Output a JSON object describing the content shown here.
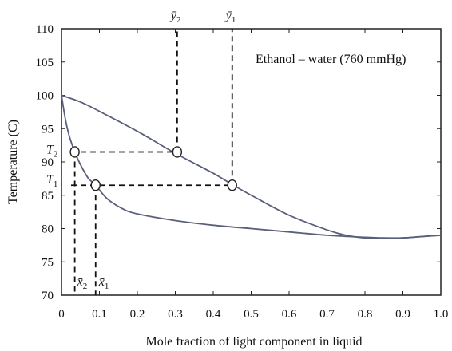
{
  "chart_data": {
    "type": "line",
    "title": "",
    "xlabel": "Mole fraction of light component in liquid",
    "ylabel": "Temperature (C)",
    "xlim": [
      0,
      1.0
    ],
    "ylim": [
      70,
      110
    ],
    "x_ticks": [
      "0",
      "0.1",
      "0.2",
      "0.3",
      "0.4",
      "0.5",
      "0.6",
      "0.7",
      "0.8",
      "0.9",
      "1.0"
    ],
    "y_ticks": [
      "70",
      "75",
      "80",
      "85",
      "90",
      "95",
      "100",
      "105",
      "110"
    ],
    "annotation": "Ethanol – water (760 mmHg)",
    "grid": false,
    "curve_color": "#5a5f7a",
    "series": [
      {
        "role": "bubble-point",
        "x": [
          0.0,
          0.01,
          0.02,
          0.035,
          0.05,
          0.07,
          0.09,
          0.12,
          0.16,
          0.2,
          0.3,
          0.4,
          0.5,
          0.6,
          0.7,
          0.8,
          0.85,
          0.9,
          0.95,
          1.0
        ],
        "y": [
          100.0,
          96.5,
          94.0,
          91.5,
          89.6,
          87.6,
          86.5,
          84.5,
          83.0,
          82.2,
          81.2,
          80.5,
          80.0,
          79.5,
          79.0,
          78.7,
          78.6,
          78.6,
          78.8,
          79.0
        ]
      },
      {
        "role": "dew-point",
        "x": [
          0.0,
          0.05,
          0.1,
          0.2,
          0.3,
          0.4,
          0.45,
          0.5,
          0.6,
          0.7,
          0.75,
          0.8,
          0.85,
          0.9,
          0.95,
          1.0
        ],
        "y": [
          100.0,
          99.0,
          97.6,
          94.6,
          91.3,
          88.3,
          86.6,
          85.0,
          82.0,
          79.8,
          79.0,
          78.6,
          78.5,
          78.6,
          78.8,
          79.0
        ]
      }
    ],
    "points": [
      {
        "label": "T2-x2",
        "x": 0.035,
        "y": 91.5
      },
      {
        "label": "T2-y2",
        "x": 0.305,
        "y": 91.5
      },
      {
        "label": "T1-x1",
        "x": 0.09,
        "y": 86.5
      },
      {
        "label": "T1-y1",
        "x": 0.45,
        "y": 86.5
      }
    ],
    "symbols": {
      "T2": {
        "main": "T",
        "sub": "2"
      },
      "T1": {
        "main": "T",
        "sub": "1"
      },
      "x2": {
        "main": "x̄",
        "sub": "2"
      },
      "x1": {
        "main": "x̄",
        "sub": "1"
      },
      "y2": {
        "main": "ȳ",
        "sub": "2"
      },
      "y1": {
        "main": "ȳ",
        "sub": "1"
      }
    }
  }
}
